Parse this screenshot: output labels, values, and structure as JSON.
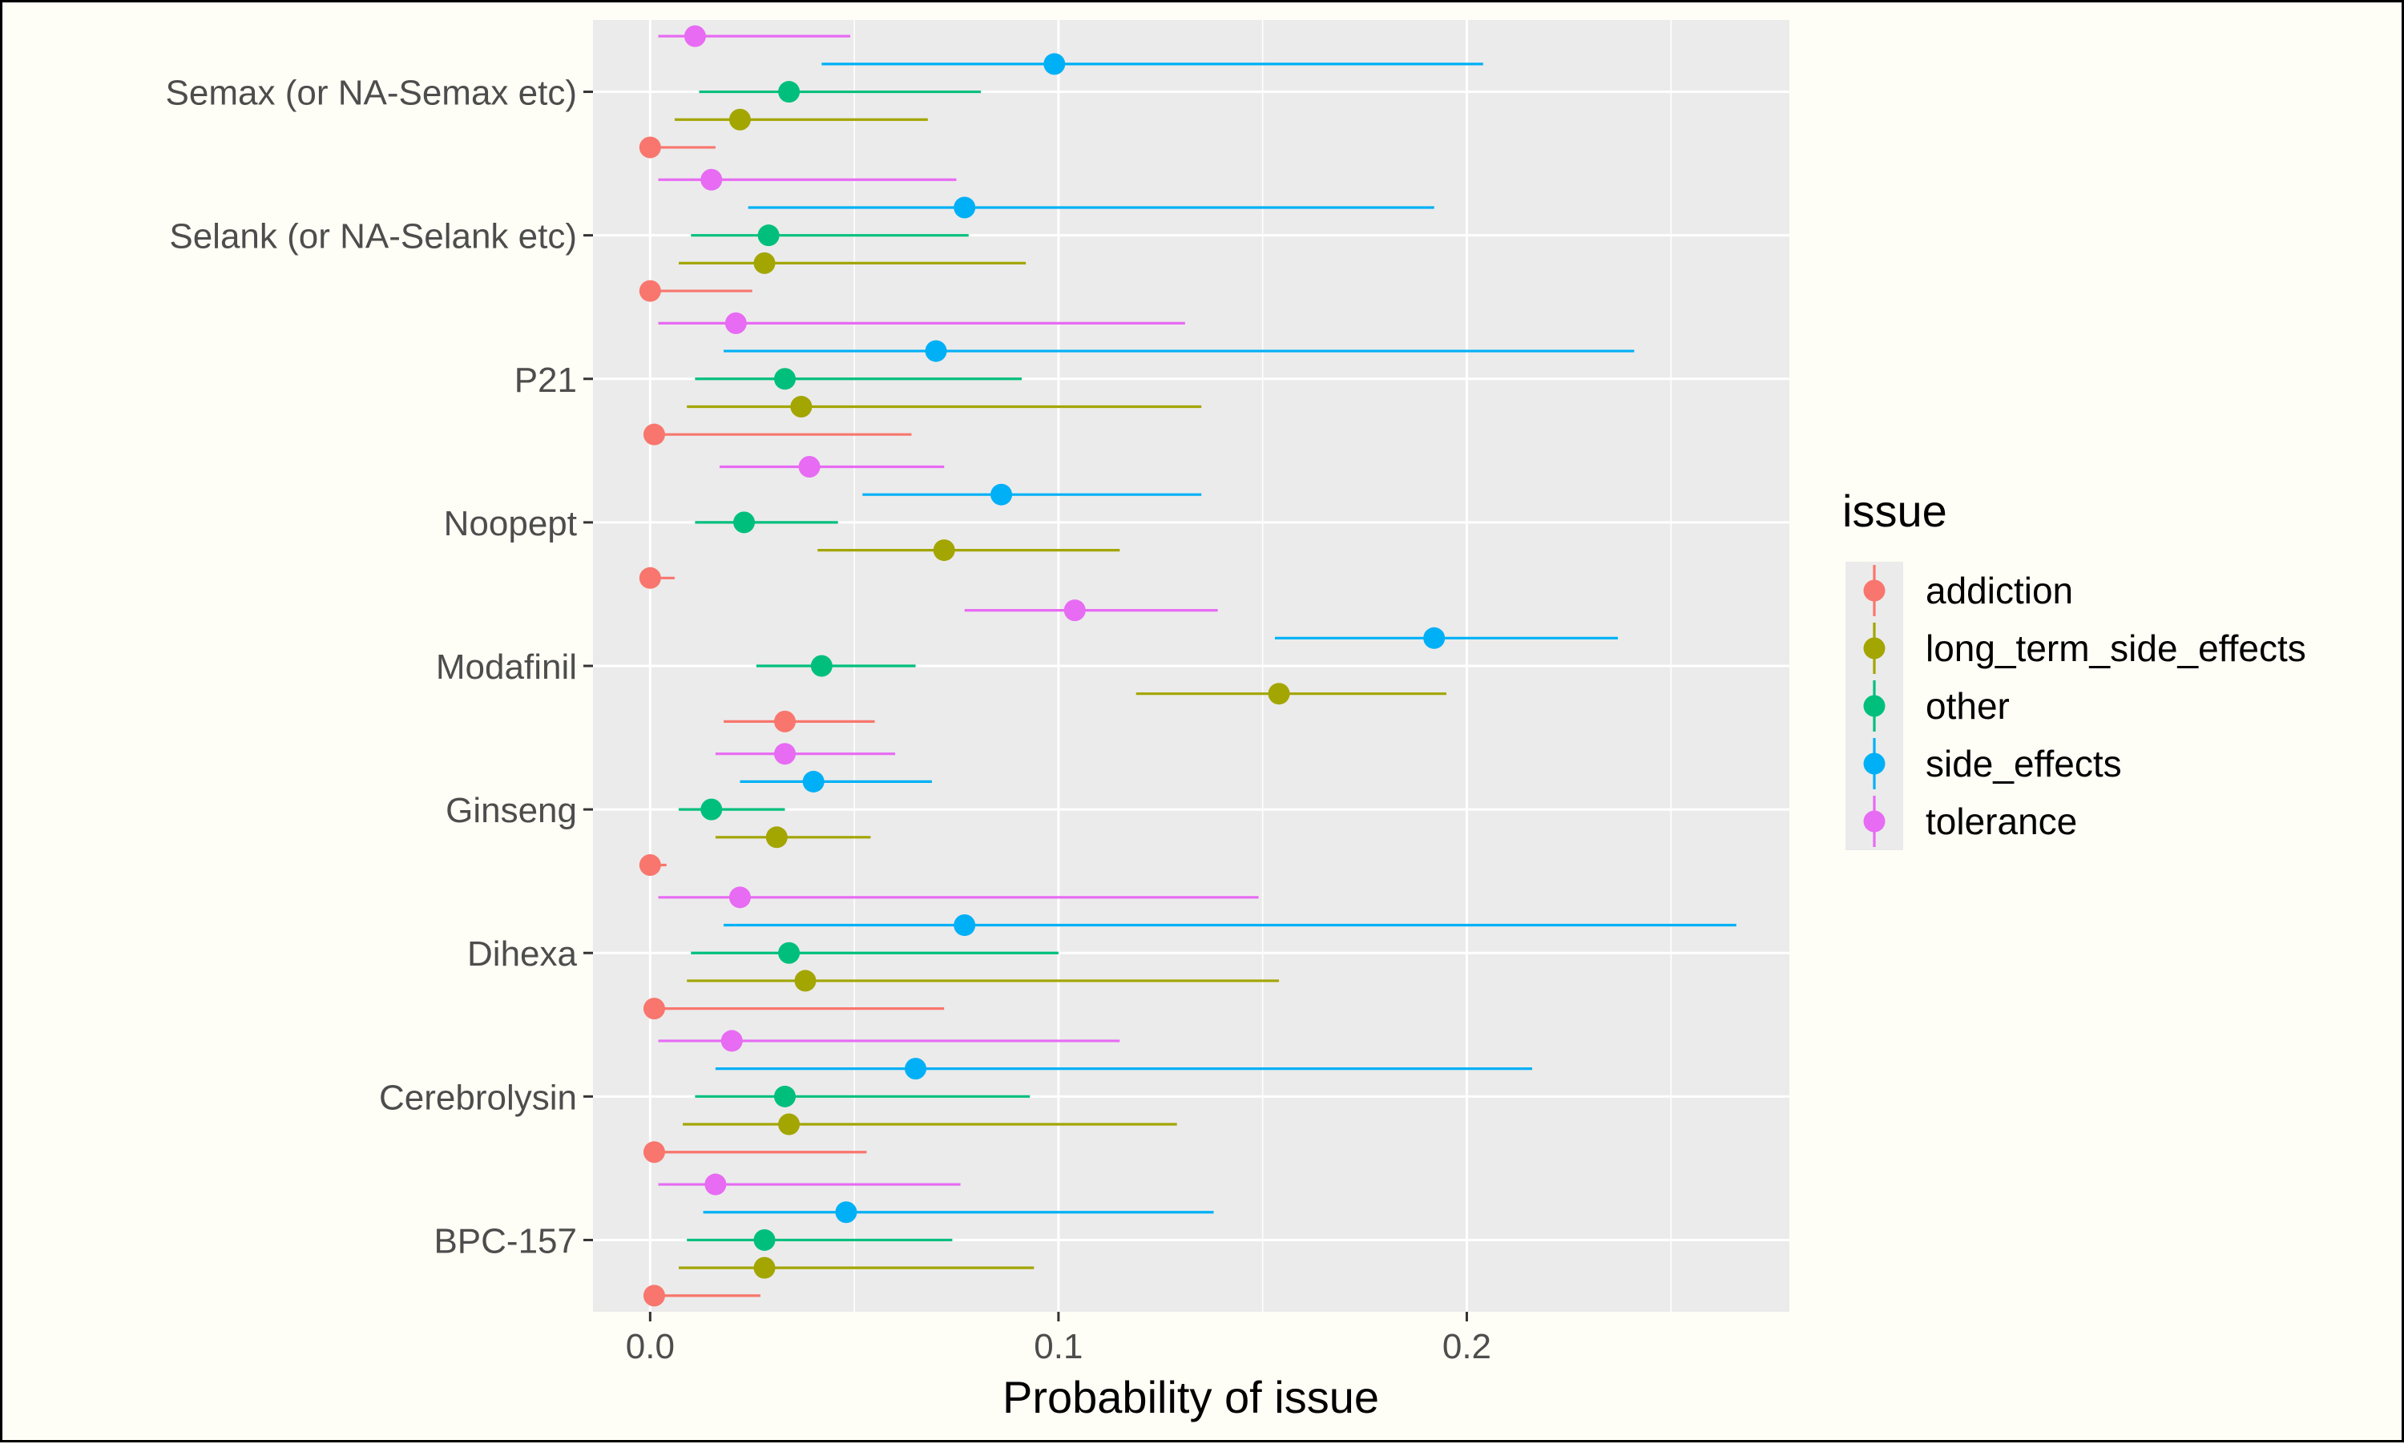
{
  "chart_data": {
    "type": "scatter",
    "subtype": "point-range (dodged by issue)",
    "xlabel": "Probability of issue",
    "ylabel": "",
    "xlim": [
      -0.014,
      0.279
    ],
    "xticks": [
      0.0,
      0.1,
      0.2
    ],
    "xtick_labels": [
      "0.0",
      "0.1",
      "0.2"
    ],
    "grid": true,
    "legend": {
      "title": "issue",
      "position": "right"
    },
    "categories": [
      "Semax (or NA-Semax etc)",
      "Selank (or NA-Selank etc)",
      "P21",
      "Noopept",
      "Modafinil",
      "Ginseng",
      "Dihexa",
      "Cerebrolysin",
      "BPC-157"
    ],
    "series": [
      {
        "name": "addiction",
        "color": "#F8766D",
        "points": [
          {
            "category": "Semax (or NA-Semax etc)",
            "value": 0.0,
            "low": 0.0,
            "high": 0.016
          },
          {
            "category": "Selank (or NA-Selank etc)",
            "value": 0.0,
            "low": 0.0,
            "high": 0.025
          },
          {
            "category": "P21",
            "value": 0.001,
            "low": 0.0,
            "high": 0.064
          },
          {
            "category": "Noopept",
            "value": 0.0,
            "low": 0.0,
            "high": 0.006
          },
          {
            "category": "Modafinil",
            "value": 0.033,
            "low": 0.018,
            "high": 0.055
          },
          {
            "category": "Ginseng",
            "value": 0.0,
            "low": 0.0,
            "high": 0.004
          },
          {
            "category": "Dihexa",
            "value": 0.001,
            "low": 0.0,
            "high": 0.072
          },
          {
            "category": "Cerebrolysin",
            "value": 0.001,
            "low": 0.0,
            "high": 0.053
          },
          {
            "category": "BPC-157",
            "value": 0.001,
            "low": 0.0,
            "high": 0.027
          }
        ]
      },
      {
        "name": "long_term_side_effects",
        "color": "#A3A500",
        "points": [
          {
            "category": "Semax (or NA-Semax etc)",
            "value": 0.022,
            "low": 0.006,
            "high": 0.068
          },
          {
            "category": "Selank (or NA-Selank etc)",
            "value": 0.028,
            "low": 0.007,
            "high": 0.092
          },
          {
            "category": "P21",
            "value": 0.037,
            "low": 0.009,
            "high": 0.135
          },
          {
            "category": "Noopept",
            "value": 0.072,
            "low": 0.041,
            "high": 0.115
          },
          {
            "category": "Modafinil",
            "value": 0.154,
            "low": 0.119,
            "high": 0.195
          },
          {
            "category": "Ginseng",
            "value": 0.031,
            "low": 0.016,
            "high": 0.054
          },
          {
            "category": "Dihexa",
            "value": 0.038,
            "low": 0.009,
            "high": 0.154
          },
          {
            "category": "Cerebrolysin",
            "value": 0.034,
            "low": 0.008,
            "high": 0.129
          },
          {
            "category": "BPC-157",
            "value": 0.028,
            "low": 0.007,
            "high": 0.094
          }
        ]
      },
      {
        "name": "other",
        "color": "#00BF7D",
        "points": [
          {
            "category": "Semax (or NA-Semax etc)",
            "value": 0.034,
            "low": 0.012,
            "high": 0.081
          },
          {
            "category": "Selank (or NA-Selank etc)",
            "value": 0.029,
            "low": 0.01,
            "high": 0.078
          },
          {
            "category": "P21",
            "value": 0.033,
            "low": 0.011,
            "high": 0.091
          },
          {
            "category": "Noopept",
            "value": 0.023,
            "low": 0.011,
            "high": 0.046
          },
          {
            "category": "Modafinil",
            "value": 0.042,
            "low": 0.026,
            "high": 0.065
          },
          {
            "category": "Ginseng",
            "value": 0.015,
            "low": 0.007,
            "high": 0.033
          },
          {
            "category": "Dihexa",
            "value": 0.034,
            "low": 0.01,
            "high": 0.1
          },
          {
            "category": "Cerebrolysin",
            "value": 0.033,
            "low": 0.011,
            "high": 0.093
          },
          {
            "category": "BPC-157",
            "value": 0.028,
            "low": 0.009,
            "high": 0.074
          }
        ]
      },
      {
        "name": "side_effects",
        "color": "#00B0F6",
        "points": [
          {
            "category": "Semax (or NA-Semax etc)",
            "value": 0.099,
            "low": 0.042,
            "high": 0.204
          },
          {
            "category": "Selank (or NA-Selank etc)",
            "value": 0.077,
            "low": 0.024,
            "high": 0.192
          },
          {
            "category": "P21",
            "value": 0.07,
            "low": 0.018,
            "high": 0.241
          },
          {
            "category": "Noopept",
            "value": 0.086,
            "low": 0.052,
            "high": 0.135
          },
          {
            "category": "Modafinil",
            "value": 0.192,
            "low": 0.153,
            "high": 0.237
          },
          {
            "category": "Ginseng",
            "value": 0.04,
            "low": 0.022,
            "high": 0.069
          },
          {
            "category": "Dihexa",
            "value": 0.077,
            "low": 0.018,
            "high": 0.266
          },
          {
            "category": "Cerebrolysin",
            "value": 0.065,
            "low": 0.016,
            "high": 0.216
          },
          {
            "category": "BPC-157",
            "value": 0.048,
            "low": 0.013,
            "high": 0.138
          }
        ]
      },
      {
        "name": "tolerance",
        "color": "#E76BF3",
        "points": [
          {
            "category": "Semax (or NA-Semax etc)",
            "value": 0.011,
            "low": 0.002,
            "high": 0.049
          },
          {
            "category": "Selank (or NA-Selank etc)",
            "value": 0.015,
            "low": 0.002,
            "high": 0.075
          },
          {
            "category": "P21",
            "value": 0.021,
            "low": 0.002,
            "high": 0.131
          },
          {
            "category": "Noopept",
            "value": 0.039,
            "low": 0.017,
            "high": 0.072
          },
          {
            "category": "Modafinil",
            "value": 0.104,
            "low": 0.077,
            "high": 0.139
          },
          {
            "category": "Ginseng",
            "value": 0.033,
            "low": 0.016,
            "high": 0.06
          },
          {
            "category": "Dihexa",
            "value": 0.022,
            "low": 0.002,
            "high": 0.149
          },
          {
            "category": "Cerebrolysin",
            "value": 0.02,
            "low": 0.002,
            "high": 0.115
          },
          {
            "category": "BPC-157",
            "value": 0.016,
            "low": 0.002,
            "high": 0.076
          }
        ]
      }
    ]
  }
}
